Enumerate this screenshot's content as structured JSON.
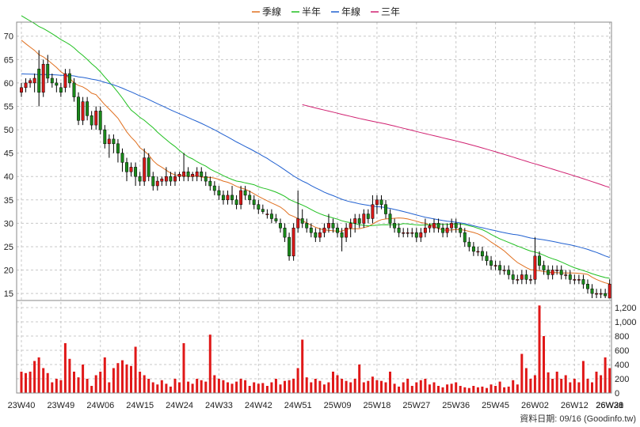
{
  "chart_data": {
    "type": "candlestick",
    "legend_placement": "top-center",
    "legend": [
      {
        "name": "季線",
        "color": "#e07020"
      },
      {
        "name": "半年",
        "color": "#20c020"
      },
      {
        "name": "年線",
        "color": "#2060d0"
      },
      {
        "name": "三年",
        "color": "#d02070"
      }
    ],
    "colors": {
      "up": "#d81818",
      "down": "#1a8a1a",
      "volume": "#e01818",
      "wick": "#000000",
      "grid": "#c8c8c8"
    },
    "price_axis": {
      "ylim": [
        13.5,
        73
      ],
      "ticks": [
        15,
        20,
        25,
        30,
        35,
        40,
        45,
        50,
        55,
        60,
        65,
        70
      ]
    },
    "volume_axis": {
      "ylim": [
        0,
        1300
      ],
      "ticks": [
        0,
        200,
        400,
        600,
        800,
        1000,
        1200
      ],
      "tick_labels": [
        "0",
        "200",
        "400",
        "600",
        "800",
        "1,000",
        "1,200"
      ]
    },
    "x_labels": [
      "23W40",
      "23W49",
      "24W06",
      "24W15",
      "24W24",
      "24W33",
      "24W42",
      "24W51",
      "25W09",
      "25W18",
      "25W27",
      "25W36",
      "25W45",
      "26W02",
      "26W12",
      "26W21",
      "26W30",
      "26W38"
    ],
    "x_label_step": 9,
    "footer": "資料日期: 09/16  (Goodinfo.tw)",
    "candles": [
      [
        58,
        60,
        57,
        59
      ],
      [
        59,
        61,
        58,
        60
      ],
      [
        60,
        61,
        59,
        60.5
      ],
      [
        60,
        62,
        58,
        61
      ],
      [
        63,
        67,
        55,
        58
      ],
      [
        58,
        65,
        57,
        64
      ],
      [
        64,
        66,
        60,
        61
      ],
      [
        61,
        62,
        59,
        60
      ],
      [
        60,
        61,
        58,
        59.5
      ],
      [
        59,
        60,
        57,
        58
      ],
      [
        59,
        63,
        58,
        62
      ],
      [
        62,
        63,
        59,
        60
      ],
      [
        60,
        61,
        56,
        57
      ],
      [
        57,
        58,
        51,
        52
      ],
      [
        52,
        57,
        51,
        56
      ],
      [
        56,
        57,
        52,
        53
      ],
      [
        53,
        54,
        50,
        51
      ],
      [
        51,
        55,
        50,
        54
      ],
      [
        54,
        55,
        49,
        50
      ],
      [
        50,
        51,
        46,
        47
      ],
      [
        47,
        49,
        44,
        48
      ],
      [
        48,
        49,
        45,
        47
      ],
      [
        47,
        48,
        43,
        45
      ],
      [
        45,
        46,
        41,
        43
      ],
      [
        43,
        44,
        39,
        41
      ],
      [
        41,
        43,
        40,
        42
      ],
      [
        42,
        43,
        38,
        40
      ],
      [
        40,
        41,
        38,
        39
      ],
      [
        39,
        46,
        38,
        44
      ],
      [
        44,
        45,
        39,
        40
      ],
      [
        40,
        41,
        37,
        38
      ],
      [
        38,
        40,
        37,
        39
      ],
      [
        39,
        40,
        38,
        39.5
      ],
      [
        39,
        42,
        38,
        40
      ],
      [
        40,
        41,
        38,
        39
      ],
      [
        39,
        41,
        38,
        40
      ],
      [
        40,
        41,
        39,
        40.5
      ],
      [
        40,
        45,
        39,
        41
      ],
      [
        41,
        42,
        39,
        40
      ],
      [
        40,
        41,
        39,
        40.5
      ],
      [
        40,
        42,
        39,
        41
      ],
      [
        41,
        42,
        39,
        40
      ],
      [
        40,
        41,
        38,
        39
      ],
      [
        39,
        40,
        37,
        38
      ],
      [
        38,
        39,
        36,
        37
      ],
      [
        37,
        38,
        35,
        36
      ],
      [
        36,
        37,
        34,
        35
      ],
      [
        35,
        37,
        34,
        36
      ],
      [
        36,
        38,
        34,
        35
      ],
      [
        35,
        36,
        33,
        34
      ],
      [
        34,
        38,
        33,
        37
      ],
      [
        37,
        38,
        35,
        36
      ],
      [
        36,
        37,
        34,
        35
      ],
      [
        35,
        36,
        33,
        34
      ],
      [
        34,
        35,
        32,
        33
      ],
      [
        33,
        34,
        32,
        32.5
      ],
      [
        32,
        33,
        31,
        32
      ],
      [
        32,
        33,
        30,
        31
      ],
      [
        31,
        32,
        30,
        30.5
      ],
      [
        30,
        31,
        28,
        29
      ],
      [
        29,
        30,
        26,
        27
      ],
      [
        27,
        28,
        22,
        23
      ],
      [
        23,
        30,
        22,
        29
      ],
      [
        29,
        37,
        28,
        31
      ],
      [
        31,
        33,
        29,
        30
      ],
      [
        30,
        31,
        28,
        29
      ],
      [
        29,
        30,
        27,
        28
      ],
      [
        28,
        29,
        26,
        27
      ],
      [
        27,
        29,
        26,
        28
      ],
      [
        28,
        30,
        27,
        29
      ],
      [
        29,
        32,
        28,
        30
      ],
      [
        30,
        31,
        28,
        29
      ],
      [
        29,
        30,
        27,
        28
      ],
      [
        28,
        29,
        24,
        27
      ],
      [
        27,
        30,
        26,
        29
      ],
      [
        29,
        31,
        27,
        30
      ],
      [
        30,
        32,
        28,
        31
      ],
      [
        31,
        32,
        29,
        30
      ],
      [
        30,
        33,
        29,
        32
      ],
      [
        32,
        33,
        30,
        31
      ],
      [
        31,
        36,
        30,
        34
      ],
      [
        34,
        36,
        32,
        35
      ],
      [
        35,
        36,
        33,
        34
      ],
      [
        34,
        35,
        31,
        32
      ],
      [
        32,
        33,
        29,
        30
      ],
      [
        30,
        31,
        28,
        29
      ],
      [
        29,
        30,
        27,
        28
      ],
      [
        28,
        29,
        27,
        28
      ],
      [
        28,
        29,
        27,
        28
      ],
      [
        28,
        29,
        27,
        28
      ],
      [
        28,
        29,
        26,
        27
      ],
      [
        27,
        29,
        26,
        28
      ],
      [
        28,
        31,
        27,
        29
      ],
      [
        29,
        30,
        28,
        29.5
      ],
      [
        29,
        31,
        28,
        30
      ],
      [
        30,
        31,
        28,
        29
      ],
      [
        29,
        30,
        27,
        28
      ],
      [
        28,
        30,
        27,
        29
      ],
      [
        29,
        31,
        28,
        30
      ],
      [
        30,
        31,
        28,
        29
      ],
      [
        29,
        30,
        27,
        28
      ],
      [
        28,
        29,
        25,
        26
      ],
      [
        26,
        27,
        24,
        25
      ],
      [
        25,
        26,
        23,
        24
      ],
      [
        24,
        25,
        23,
        24
      ],
      [
        24,
        25,
        22,
        23
      ],
      [
        23,
        24,
        21,
        22
      ],
      [
        22,
        23,
        20,
        21
      ],
      [
        21,
        22,
        20,
        21
      ],
      [
        21,
        22,
        19,
        20
      ],
      [
        20,
        21,
        19,
        20
      ],
      [
        20,
        21,
        18,
        19
      ],
      [
        19,
        20,
        17,
        18
      ],
      [
        18,
        19,
        17,
        18
      ],
      [
        18,
        20,
        17,
        19
      ],
      [
        19,
        20,
        17,
        18
      ],
      [
        18,
        19,
        17,
        18
      ],
      [
        18,
        27,
        17,
        23
      ],
      [
        23,
        24,
        20,
        21
      ],
      [
        21,
        22,
        19,
        20
      ],
      [
        20,
        21,
        18,
        19
      ],
      [
        19,
        21,
        18,
        20
      ],
      [
        20,
        21,
        19,
        20
      ],
      [
        20,
        21,
        18,
        19
      ],
      [
        19,
        20,
        18,
        19
      ],
      [
        19,
        20,
        17,
        18
      ],
      [
        18,
        19,
        17,
        18
      ],
      [
        18,
        19,
        17,
        18
      ],
      [
        18,
        19,
        16,
        17
      ],
      [
        17,
        18,
        15,
        16
      ],
      [
        16,
        17,
        14,
        15
      ],
      [
        15,
        16,
        14,
        15
      ],
      [
        15,
        16,
        14,
        15
      ],
      [
        15,
        16,
        14,
        14.5
      ],
      [
        14,
        18,
        14,
        17
      ]
    ],
    "volume": [
      300,
      280,
      300,
      450,
      500,
      350,
      280,
      150,
      200,
      180,
      700,
      480,
      300,
      220,
      400,
      200,
      100,
      250,
      300,
      500,
      150,
      350,
      420,
      460,
      400,
      380,
      650,
      300,
      250,
      200,
      150,
      120,
      180,
      130,
      90,
      200,
      150,
      700,
      160,
      130,
      200,
      180,
      160,
      820,
      250,
      200,
      180,
      150,
      130,
      160,
      200,
      180,
      100,
      150,
      130,
      140,
      100,
      150,
      200,
      120,
      170,
      180,
      200,
      350,
      750,
      220,
      150,
      200,
      170,
      120,
      150,
      300,
      250,
      200,
      170,
      150,
      200,
      400,
      150,
      170,
      230,
      180,
      170,
      150,
      300,
      130,
      90,
      150,
      200,
      100,
      150,
      180,
      200,
      120,
      150,
      100,
      80,
      120,
      130,
      150,
      100,
      80,
      70,
      100,
      80,
      90,
      70,
      120,
      100,
      160,
      80,
      90,
      180,
      120,
      550,
      350,
      200,
      250,
      1230,
      800,
      290,
      200,
      300,
      200,
      250,
      150,
      200,
      150,
      450,
      200,
      150,
      300,
      250,
      500,
      350
    ]
  }
}
